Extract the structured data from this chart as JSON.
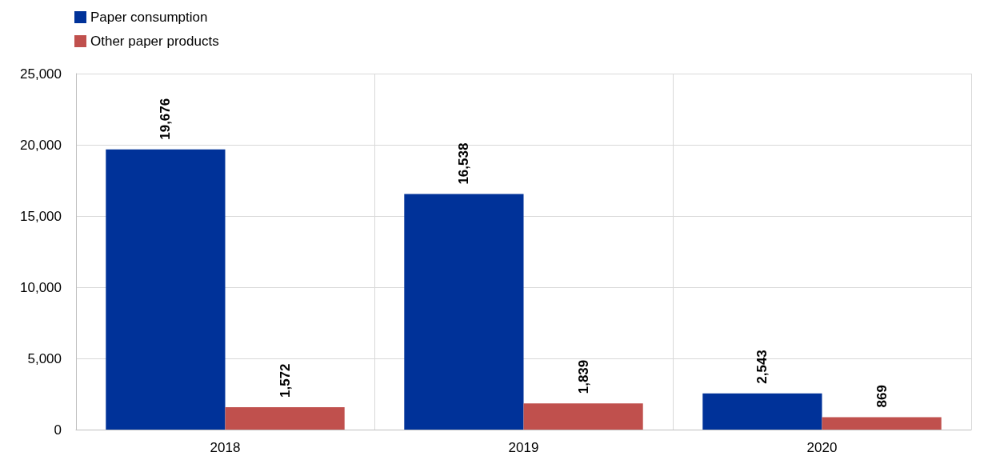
{
  "chart_data": {
    "type": "bar",
    "categories": [
      "2018",
      "2019",
      "2020"
    ],
    "series": [
      {
        "name": "Paper consumption",
        "color": "#003299",
        "values": [
          19676,
          16538,
          2543
        ],
        "value_labels": [
          "19,676",
          "16,538",
          "2,543"
        ]
      },
      {
        "name": "Other paper products",
        "color": "#c0504d",
        "values": [
          1572,
          1839,
          869
        ],
        "value_labels": [
          "1,572",
          "1,839",
          "869"
        ]
      }
    ],
    "ylim": [
      0,
      25000
    ],
    "yticks": [
      {
        "value": 0,
        "label": "0"
      },
      {
        "value": 5000,
        "label": "5,000"
      },
      {
        "value": 10000,
        "label": "10,000"
      },
      {
        "value": 15000,
        "label": "15,000"
      },
      {
        "value": 20000,
        "label": "20,000"
      },
      {
        "value": 25000,
        "label": "25,000"
      }
    ],
    "grid": true,
    "legend": "top left"
  }
}
